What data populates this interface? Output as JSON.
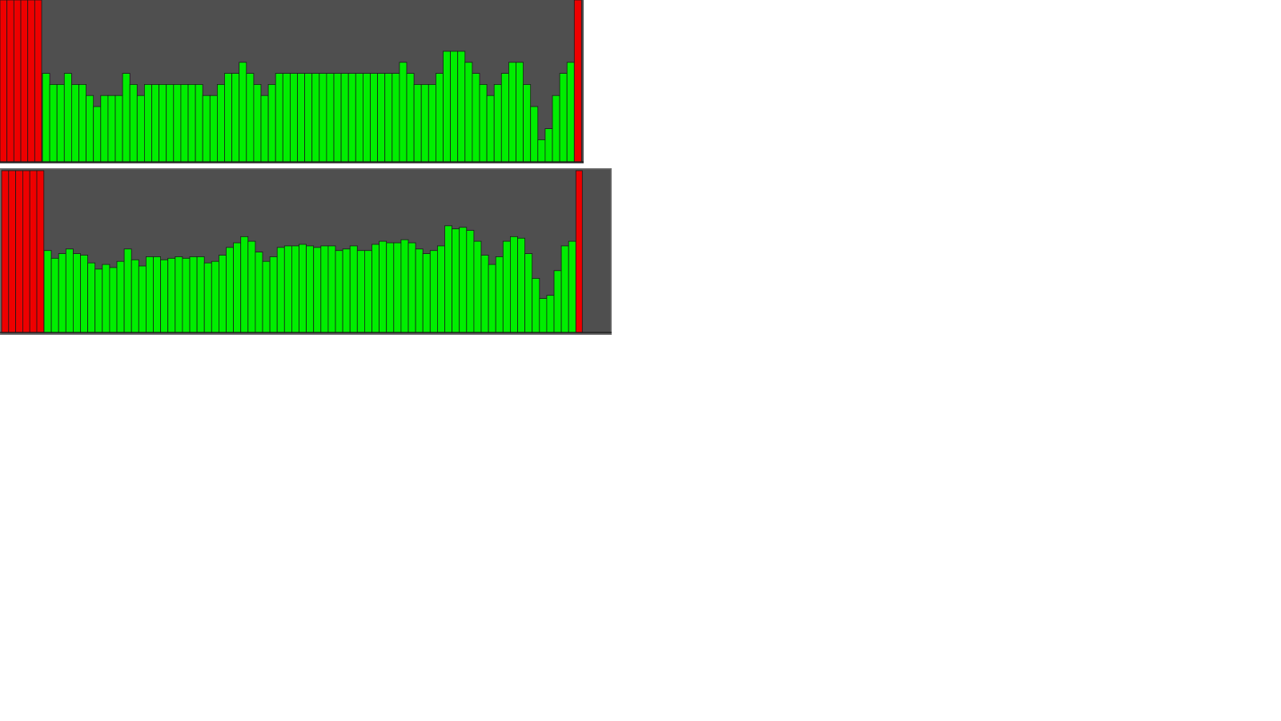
{
  "colors": {
    "plot_background": "#4f4f4f",
    "bar_ok": "#00ee00",
    "bar_marker": "#ee0000",
    "frame": "#6e6e6e",
    "bar_edge": "#1a1a1a"
  },
  "chart_data": [
    {
      "type": "bar",
      "title": "",
      "xlabel": "",
      "ylabel": "",
      "ylim": [
        0,
        10
      ],
      "grid": false,
      "leading_red_bars": 6,
      "trailing_red_bars": 1,
      "values": [
        8,
        7,
        7,
        8,
        7,
        7,
        6,
        5,
        6,
        6,
        6,
        8,
        7,
        6,
        7,
        7,
        7,
        7,
        7,
        7,
        7,
        7,
        6,
        6,
        7,
        8,
        8,
        9,
        8,
        7,
        6,
        7,
        8,
        8,
        8,
        8,
        8,
        8,
        8,
        8,
        8,
        8,
        8,
        8,
        8,
        8,
        8,
        8,
        8,
        9,
        8,
        7,
        7,
        7,
        8,
        10,
        10,
        10,
        9,
        8,
        7,
        6,
        7,
        8,
        9,
        9,
        7,
        5,
        2,
        3,
        6,
        8,
        9
      ]
    },
    {
      "type": "bar",
      "title": "",
      "xlabel": "",
      "ylabel": "",
      "ylim": [
        0,
        10
      ],
      "grid": false,
      "leading_red_bars": 6,
      "trailing_red_bars": 1,
      "values": [
        5.3,
        4.8,
        5.1,
        5.4,
        5.1,
        5.0,
        4.5,
        4.1,
        4.4,
        4.2,
        4.6,
        5.4,
        4.7,
        4.3,
        4.9,
        4.9,
        4.7,
        4.8,
        4.9,
        4.8,
        4.9,
        4.9,
        4.5,
        4.6,
        5.0,
        5.5,
        5.8,
        6.2,
        5.9,
        5.2,
        4.6,
        4.9,
        5.5,
        5.6,
        5.6,
        5.7,
        5.6,
        5.5,
        5.6,
        5.6,
        5.3,
        5.4,
        5.6,
        5.3,
        5.3,
        5.7,
        5.9,
        5.8,
        5.8,
        6.0,
        5.8,
        5.4,
        5.1,
        5.3,
        5.6,
        6.9,
        6.7,
        6.8,
        6.6,
        5.9,
        5.0,
        4.4,
        4.9,
        5.9,
        6.2,
        6.1,
        5.1,
        3.5,
        2.2,
        2.4,
        4.0,
        5.6,
        5.9
      ]
    }
  ]
}
